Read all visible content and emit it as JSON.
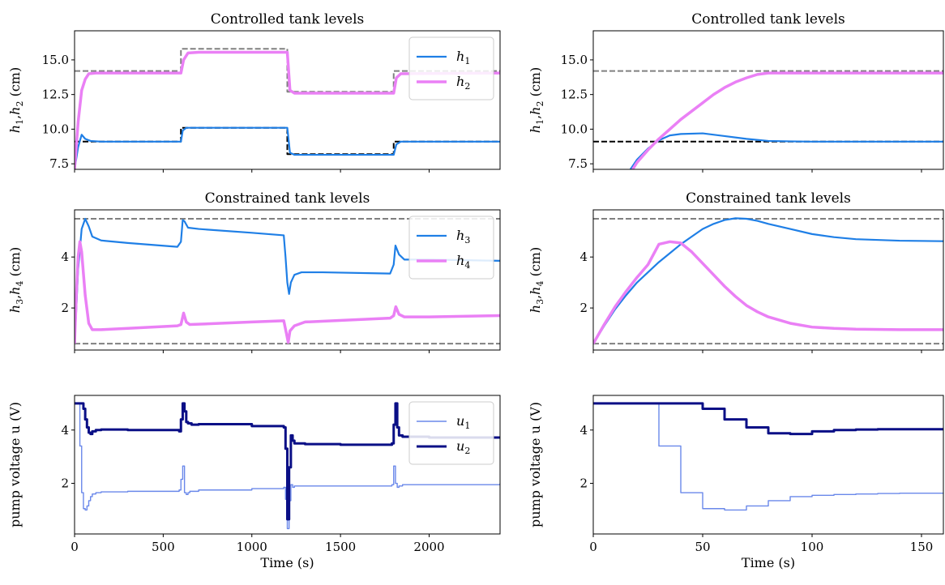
{
  "colors": {
    "h1": "#1f7fe6",
    "h2": "#ea80f5",
    "h3": "#1f7fe6",
    "h4": "#ea80f5",
    "u1": "#6a88ea",
    "u2": "#0a0f86",
    "ref_gray": "#808080",
    "ref_black": "#000000"
  },
  "chart_data": [
    {
      "id": "left_top",
      "type": "line",
      "title": "Controlled tank levels",
      "ylabel_main": "h",
      "ylabel_sub1": "1",
      "ylabel_sep": ",",
      "ylabel_sub2": "2",
      "ylabel_unit": " (cm)",
      "xlim": [
        0,
        2400
      ],
      "ylim": [
        7.1,
        17.1
      ],
      "yticks": [
        7.5,
        10.0,
        12.5,
        15.0
      ],
      "ytick_labels": [
        "7.5",
        "10.0",
        "12.5",
        "15.0"
      ],
      "xticks": [
        0,
        500,
        1000,
        1500,
        2000
      ],
      "xtick_labels": [],
      "legend": {
        "placement": "top-right",
        "entries": [
          {
            "main": "h",
            "sub": "1",
            "series": "h1"
          },
          {
            "main": "h",
            "sub": "2",
            "series": "h2"
          }
        ]
      },
      "series": [
        {
          "key": "ref2",
          "color_key": "ref_gray",
          "dash": true,
          "width": 2,
          "step": true,
          "x": [
            0,
            600,
            1200,
            1800,
            2400
          ],
          "y": [
            14.2,
            15.8,
            12.7,
            14.2,
            14.2
          ]
        },
        {
          "key": "ref1",
          "color_key": "ref_black",
          "dash": true,
          "width": 2,
          "step": true,
          "x": [
            0,
            600,
            1200,
            1800,
            2400
          ],
          "y": [
            9.1,
            10.1,
            8.2,
            9.1,
            9.1
          ]
        },
        {
          "key": "h1",
          "name": "h1",
          "color_key": "h1",
          "width": 2.2,
          "x": [
            0,
            20,
            40,
            60,
            90,
            150,
            600,
            610,
            630,
            660,
            1200,
            1215,
            1240,
            1800,
            1815,
            1840,
            2400
          ],
          "y": [
            7.1,
            8.7,
            9.6,
            9.3,
            9.15,
            9.1,
            9.1,
            9.9,
            10.1,
            10.1,
            10.1,
            8.3,
            8.15,
            8.15,
            8.9,
            9.1,
            9.1
          ]
        },
        {
          "key": "h2",
          "name": "h2",
          "color_key": "h2",
          "width": 3.5,
          "x": [
            0,
            20,
            40,
            60,
            80,
            120,
            600,
            615,
            640,
            700,
            1200,
            1215,
            1240,
            1800,
            1815,
            1840,
            2400
          ],
          "y": [
            7.1,
            10.5,
            12.8,
            13.6,
            14.0,
            14.05,
            14.05,
            15.0,
            15.5,
            15.55,
            15.55,
            12.8,
            12.6,
            12.6,
            13.7,
            14.0,
            14.05
          ]
        }
      ]
    },
    {
      "id": "right_top",
      "type": "line",
      "title": "Controlled tank levels",
      "ylabel_main": "h",
      "ylabel_sub1": "1",
      "ylabel_sep": ",",
      "ylabel_sub2": "2",
      "ylabel_unit": " (cm)",
      "xlim": [
        0,
        160
      ],
      "ylim": [
        7.1,
        17.1
      ],
      "yticks": [
        7.5,
        10.0,
        12.5,
        15.0
      ],
      "ytick_labels": [
        "7.5",
        "10.0",
        "12.5",
        "15.0"
      ],
      "xticks": [
        0,
        50,
        100,
        150
      ],
      "xtick_labels": [],
      "series": [
        {
          "key": "ref2",
          "color_key": "ref_gray",
          "dash": true,
          "width": 2,
          "step": true,
          "x": [
            0,
            160
          ],
          "y": [
            14.2,
            14.2
          ]
        },
        {
          "key": "ref1",
          "color_key": "ref_black",
          "dash": true,
          "width": 2,
          "step": true,
          "x": [
            0,
            160
          ],
          "y": [
            9.1,
            9.1
          ]
        },
        {
          "key": "h1",
          "name": "h1",
          "color_key": "h1",
          "width": 2.2,
          "x": [
            17,
            20,
            25,
            30,
            35,
            40,
            50,
            60,
            70,
            80,
            90,
            100,
            120,
            160
          ],
          "y": [
            7.1,
            7.8,
            8.6,
            9.2,
            9.55,
            9.65,
            9.7,
            9.5,
            9.3,
            9.15,
            9.12,
            9.1,
            9.1,
            9.1
          ]
        },
        {
          "key": "h2",
          "name": "h2",
          "color_key": "h2",
          "width": 3.5,
          "x": [
            18,
            20,
            25,
            30,
            35,
            40,
            45,
            50,
            55,
            60,
            65,
            70,
            75,
            80,
            90,
            100,
            120,
            160
          ],
          "y": [
            7.1,
            7.6,
            8.5,
            9.3,
            10.0,
            10.7,
            11.3,
            11.9,
            12.5,
            13.0,
            13.4,
            13.7,
            13.95,
            14.05,
            14.05,
            14.05,
            14.05,
            14.05
          ]
        }
      ]
    },
    {
      "id": "left_mid",
      "type": "line",
      "title": "Constrained tank levels",
      "ylabel_main": "h",
      "ylabel_sub1": "3",
      "ylabel_sep": ",",
      "ylabel_sub2": "4",
      "ylabel_unit": " (cm)",
      "xlim": [
        0,
        2400
      ],
      "ylim": [
        0.35,
        5.85
      ],
      "yticks": [
        2,
        4
      ],
      "ytick_labels": [
        "2",
        "4"
      ],
      "xticks": [
        0,
        500,
        1000,
        1500,
        2000
      ],
      "xtick_labels": [],
      "legend": {
        "placement": "top-right",
        "entries": [
          {
            "main": "h",
            "sub": "3",
            "series": "h3"
          },
          {
            "main": "h",
            "sub": "4",
            "series": "h4"
          }
        ]
      },
      "series": [
        {
          "key": "max",
          "color_key": "ref_gray",
          "dash": true,
          "width": 2,
          "x": [
            0,
            2400
          ],
          "y": [
            5.5,
            5.5
          ]
        },
        {
          "key": "min",
          "color_key": "ref_gray",
          "dash": true,
          "width": 2,
          "x": [
            0,
            2400
          ],
          "y": [
            0.6,
            0.6
          ]
        },
        {
          "key": "h3",
          "name": "h3",
          "color_key": "h3",
          "width": 2.2,
          "x": [
            0,
            10,
            20,
            40,
            60,
            80,
            100,
            150,
            300,
            580,
            600,
            610,
            620,
            640,
            700,
            1000,
            1180,
            1190,
            1200,
            1210,
            1220,
            1240,
            1280,
            1400,
            1780,
            1800,
            1810,
            1830,
            1860,
            2000,
            2400
          ],
          "y": [
            0.6,
            2.0,
            3.5,
            5.1,
            5.5,
            5.2,
            4.8,
            4.65,
            4.55,
            4.4,
            4.6,
            5.45,
            5.4,
            5.15,
            5.1,
            4.95,
            4.85,
            4.0,
            3.0,
            2.55,
            3.0,
            3.3,
            3.4,
            3.4,
            3.35,
            3.7,
            4.45,
            4.1,
            3.9,
            3.9,
            3.85
          ]
        },
        {
          "key": "h4",
          "name": "h4",
          "color_key": "h4",
          "width": 3.5,
          "x": [
            0,
            10,
            20,
            30,
            40,
            60,
            80,
            100,
            150,
            300,
            580,
            600,
            615,
            630,
            650,
            1000,
            1180,
            1195,
            1205,
            1215,
            1240,
            1300,
            1780,
            1800,
            1812,
            1830,
            1860,
            2000,
            2400
          ],
          "y": [
            0.6,
            2.5,
            4.0,
            4.6,
            4.2,
            2.5,
            1.4,
            1.15,
            1.15,
            1.2,
            1.3,
            1.35,
            1.8,
            1.45,
            1.35,
            1.45,
            1.5,
            1.0,
            0.65,
            1.1,
            1.3,
            1.45,
            1.6,
            1.7,
            2.05,
            1.75,
            1.65,
            1.65,
            1.7
          ]
        }
      ]
    },
    {
      "id": "right_mid",
      "type": "line",
      "title": "Constrained tank levels",
      "ylabel_main": "h",
      "ylabel_sub1": "3",
      "ylabel_sep": ",",
      "ylabel_sub2": "4",
      "ylabel_unit": " (cm)",
      "xlim": [
        0,
        160
      ],
      "ylim": [
        0.35,
        5.85
      ],
      "yticks": [
        2,
        4
      ],
      "ytick_labels": [
        "2",
        "4"
      ],
      "xticks": [
        0,
        50,
        100,
        150
      ],
      "xtick_labels": [],
      "series": [
        {
          "key": "max",
          "color_key": "ref_gray",
          "dash": true,
          "width": 2,
          "x": [
            0,
            160
          ],
          "y": [
            5.5,
            5.5
          ]
        },
        {
          "key": "min",
          "color_key": "ref_gray",
          "dash": true,
          "width": 2,
          "x": [
            0,
            160
          ],
          "y": [
            0.6,
            0.6
          ]
        },
        {
          "key": "h3",
          "name": "h3",
          "color_key": "h3",
          "width": 2.2,
          "x": [
            0,
            5,
            10,
            15,
            20,
            25,
            30,
            35,
            40,
            45,
            50,
            55,
            60,
            65,
            70,
            75,
            80,
            90,
            100,
            110,
            120,
            140,
            160
          ],
          "y": [
            0.6,
            1.3,
            1.95,
            2.5,
            3.0,
            3.4,
            3.8,
            4.15,
            4.5,
            4.8,
            5.1,
            5.3,
            5.45,
            5.52,
            5.5,
            5.42,
            5.3,
            5.1,
            4.9,
            4.78,
            4.7,
            4.64,
            4.62
          ]
        },
        {
          "key": "h4",
          "name": "h4",
          "color_key": "h4",
          "width": 3.5,
          "x": [
            0,
            5,
            10,
            15,
            20,
            25,
            30,
            35,
            40,
            45,
            50,
            55,
            60,
            65,
            70,
            75,
            80,
            90,
            100,
            110,
            120,
            140,
            160
          ],
          "y": [
            0.6,
            1.35,
            2.05,
            2.65,
            3.2,
            3.7,
            4.5,
            4.6,
            4.55,
            4.2,
            3.75,
            3.3,
            2.85,
            2.45,
            2.1,
            1.85,
            1.65,
            1.4,
            1.25,
            1.2,
            1.17,
            1.15,
            1.15
          ]
        }
      ]
    },
    {
      "id": "left_bot",
      "type": "line",
      "title": "",
      "ylabel_text": "pump voltage u (V)",
      "xlabel": "Time (s)",
      "xlim": [
        0,
        2400
      ],
      "ylim": [
        0.1,
        5.3
      ],
      "yticks": [
        2,
        4
      ],
      "ytick_labels": [
        "2",
        "4"
      ],
      "xticks": [
        0,
        500,
        1000,
        1500,
        2000
      ],
      "xtick_labels": [
        "0",
        "500",
        "1000",
        "1500",
        "2000"
      ],
      "legend": {
        "placement": "top-right",
        "entries": [
          {
            "main": "u",
            "sub": "1",
            "series": "u1"
          },
          {
            "main": "u",
            "sub": "2",
            "series": "u2"
          }
        ]
      },
      "series": [
        {
          "key": "u1",
          "name": "u1",
          "color_key": "u1",
          "width": 1.4,
          "step": true,
          "x": [
            0,
            30,
            40,
            50,
            60,
            70,
            80,
            90,
            100,
            120,
            150,
            300,
            590,
            600,
            610,
            620,
            630,
            640,
            650,
            700,
            1000,
            1180,
            1190,
            1200,
            1210,
            1220,
            1230,
            1240,
            1300,
            1500,
            1790,
            1800,
            1810,
            1820,
            1830,
            1850,
            2000,
            2400
          ],
          "y": [
            5.0,
            3.4,
            1.65,
            1.05,
            1.0,
            1.15,
            1.35,
            1.5,
            1.6,
            1.65,
            1.68,
            1.7,
            1.75,
            2.15,
            2.65,
            1.65,
            1.58,
            1.65,
            1.7,
            1.75,
            1.8,
            1.85,
            1.4,
            0.3,
            1.35,
            1.95,
            1.85,
            1.9,
            1.9,
            1.9,
            1.95,
            2.65,
            2.0,
            1.85,
            1.9,
            1.95,
            1.95,
            2.0
          ]
        },
        {
          "key": "u2",
          "name": "u2",
          "color_key": "u2",
          "width": 3,
          "step": true,
          "x": [
            0,
            50,
            60,
            70,
            80,
            90,
            100,
            120,
            150,
            300,
            590,
            600,
            610,
            620,
            630,
            640,
            660,
            700,
            1000,
            1180,
            1190,
            1200,
            1210,
            1220,
            1230,
            1240,
            1300,
            1500,
            1790,
            1800,
            1810,
            1820,
            1830,
            1850,
            2000,
            2400
          ],
          "y": [
            5.0,
            4.8,
            4.4,
            4.1,
            3.9,
            3.85,
            3.95,
            4.0,
            4.02,
            4.0,
            3.95,
            4.4,
            5.0,
            4.7,
            4.3,
            4.25,
            4.2,
            4.22,
            4.15,
            4.1,
            3.3,
            0.65,
            2.6,
            3.8,
            3.6,
            3.5,
            3.47,
            3.45,
            3.5,
            4.2,
            5.0,
            4.1,
            3.8,
            3.75,
            3.72,
            3.7
          ]
        }
      ]
    },
    {
      "id": "right_bot",
      "type": "line",
      "title": "",
      "ylabel_text": "pump voltage u (V)",
      "xlabel": "Time (s)",
      "xlim": [
        0,
        160
      ],
      "ylim": [
        0.1,
        5.3
      ],
      "yticks": [
        2,
        4
      ],
      "ytick_labels": [
        "2",
        "4"
      ],
      "xticks": [
        0,
        50,
        100,
        150
      ],
      "xtick_labels": [
        "0",
        "50",
        "100",
        "150"
      ],
      "series": [
        {
          "key": "u1",
          "name": "u1",
          "color_key": "u1",
          "width": 1.4,
          "step": true,
          "x": [
            0,
            30,
            40,
            50,
            60,
            70,
            80,
            90,
            100,
            110,
            120,
            130,
            140,
            160
          ],
          "y": [
            5.0,
            3.4,
            1.65,
            1.05,
            1.0,
            1.15,
            1.35,
            1.5,
            1.55,
            1.58,
            1.6,
            1.62,
            1.63,
            1.63
          ]
        },
        {
          "key": "u2",
          "name": "u2",
          "color_key": "u2",
          "width": 3,
          "step": true,
          "x": [
            0,
            50,
            60,
            70,
            80,
            90,
            100,
            110,
            120,
            130,
            140,
            160
          ],
          "y": [
            5.0,
            4.8,
            4.4,
            4.1,
            3.88,
            3.85,
            3.95,
            4.0,
            4.02,
            4.03,
            4.03,
            4.03
          ]
        }
      ]
    }
  ]
}
